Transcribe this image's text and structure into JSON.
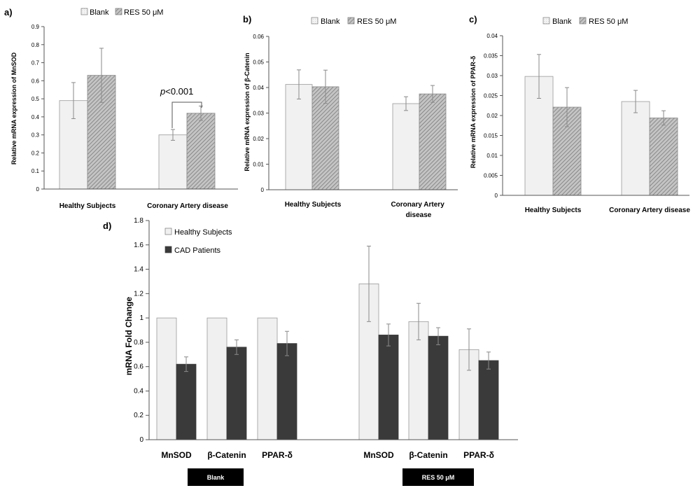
{
  "chart_data": [
    {
      "panel": "a)",
      "type": "bar",
      "ylabel": "Relative mRNA expression of MnSOD",
      "ylim": [
        0,
        0.9
      ],
      "yticks": [
        "0",
        "0.1",
        "0.2",
        "0.3",
        "0.4",
        "0.5",
        "0.6",
        "0.7",
        "0.8",
        "0.9"
      ],
      "categories": [
        "Healthy Subjects",
        "Coronary Artery disease"
      ],
      "legend_position": "top",
      "series": [
        {
          "name": "Blank",
          "values": [
            0.49,
            0.3
          ],
          "errors": [
            0.1,
            0.03
          ]
        },
        {
          "name": "RES 50 μM",
          "values": [
            0.63,
            0.42
          ],
          "errors": [
            0.15,
            0.04
          ]
        }
      ],
      "annotation": {
        "prefix": "p",
        "text": "<0.001",
        "category": "Coronary Artery disease"
      }
    },
    {
      "panel": "b)",
      "type": "bar",
      "ylabel": "Relative mRNA expression of β-Catenin",
      "ylim": [
        0,
        0.06
      ],
      "yticks": [
        "0",
        "0.01",
        "0.02",
        "0.03",
        "0.04",
        "0.05",
        "0.06"
      ],
      "categories": [
        "Healthy Subjects",
        "Coronary Artery disease"
      ],
      "legend_position": "top",
      "series": [
        {
          "name": "Blank",
          "values": [
            0.0412,
            0.0337
          ],
          "errors": [
            0.0057,
            0.0027
          ]
        },
        {
          "name": "RES 50 μM",
          "values": [
            0.0403,
            0.0375
          ],
          "errors": [
            0.0065,
            0.0033
          ]
        }
      ]
    },
    {
      "panel": "c)",
      "type": "bar",
      "ylabel": "Relative mRNA expression of PPAR-δ",
      "ylim": [
        0,
        0.04
      ],
      "yticks": [
        "0",
        "0.005",
        "0.01",
        "0.015",
        "0.02",
        "0.025",
        "0.03",
        "0.035",
        "0.04"
      ],
      "categories": [
        "Healthy Subjects",
        "Coronary Artery disease"
      ],
      "legend_position": "top",
      "series": [
        {
          "name": "Blank",
          "values": [
            0.0298,
            0.0235
          ],
          "errors": [
            0.0055,
            0.0028
          ]
        },
        {
          "name": "RES 50 μM",
          "values": [
            0.0221,
            0.0194
          ],
          "errors": [
            0.0049,
            0.0018
          ]
        }
      ]
    },
    {
      "panel": "d)",
      "type": "bar",
      "ylabel": "mRNA Fold Change",
      "ylim": [
        0,
        1.8
      ],
      "yticks": [
        "0",
        "0.2",
        "0.4",
        "0.6",
        "0.8",
        "1",
        "1.2",
        "1.4",
        "1.6",
        "1.8"
      ],
      "categories": [
        "MnSOD",
        "β-Catenin",
        "PPAR-δ",
        "MnSOD",
        "β-Catenin",
        "PPAR-δ"
      ],
      "groups": [
        "Blank",
        "RES 50 μM"
      ],
      "legend_position": "top-left",
      "series": [
        {
          "name": "Healthy Subjects",
          "values": [
            1.0,
            1.0,
            1.0,
            1.28,
            0.97,
            0.74
          ],
          "errors": [
            0,
            0,
            0,
            0.31,
            0.15,
            0.17
          ]
        },
        {
          "name": "CAD Patients",
          "values": [
            0.62,
            0.76,
            0.79,
            0.86,
            0.85,
            0.65
          ],
          "errors": [
            0.06,
            0.06,
            0.1,
            0.09,
            0.07,
            0.07
          ]
        }
      ]
    }
  ],
  "colors": {
    "blank_fill": "#f1f1f1",
    "res_fill": "#c4c4c4",
    "res_hatch": "#7a7a7a",
    "healthy_fill": "#f0f0f0",
    "cad_fill": "#3a3a3a",
    "axis": "#555555",
    "error_bar": "#8a8a8a",
    "label_box": "#000000"
  }
}
